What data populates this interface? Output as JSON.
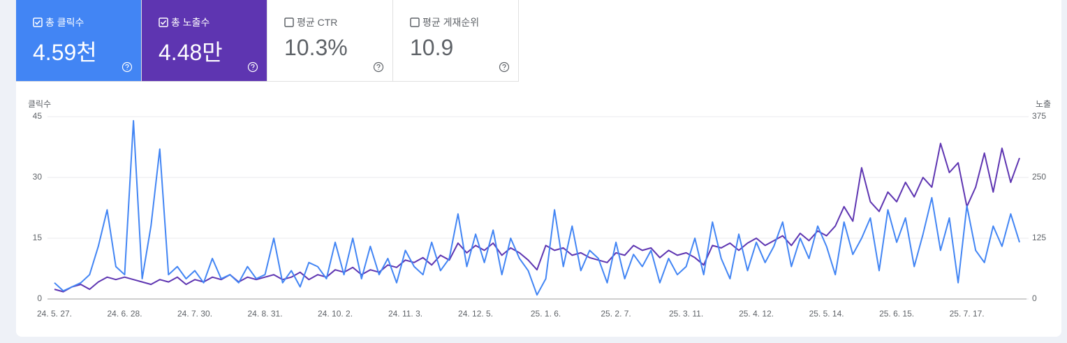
{
  "cards": [
    {
      "label": "총 클릭수",
      "value": "4.59천",
      "checked": true,
      "color": "#4285f4"
    },
    {
      "label": "총 노출수",
      "value": "4.48만",
      "checked": true,
      "color": "#5e35b1"
    },
    {
      "label": "평균 CTR",
      "value": "10.3%",
      "checked": false,
      "color": "#ffffff"
    },
    {
      "label": "평균 게재순위",
      "value": "10.9",
      "checked": false,
      "color": "#ffffff"
    }
  ],
  "chart_data": {
    "type": "line",
    "y_label": "클릭수",
    "y2_label": "노출",
    "categories": [
      "24. 5. 27.",
      null,
      null,
      null,
      null,
      null,
      null,
      null,
      "24. 6. 28.",
      null,
      null,
      null,
      null,
      null,
      null,
      null,
      "24. 7. 30.",
      null,
      null,
      null,
      null,
      null,
      null,
      null,
      "24. 8. 31.",
      null,
      null,
      null,
      null,
      null,
      null,
      null,
      "24. 10. 2.",
      null,
      null,
      null,
      null,
      null,
      null,
      null,
      "24. 11. 3.",
      null,
      null,
      null,
      null,
      null,
      null,
      null,
      "24. 12. 5.",
      null,
      null,
      null,
      null,
      null,
      null,
      null,
      "25. 1. 6.",
      null,
      null,
      null,
      null,
      null,
      null,
      null,
      "25. 2. 7.",
      null,
      null,
      null,
      null,
      null,
      null,
      null,
      "25. 3. 11.",
      null,
      null,
      null,
      null,
      null,
      null,
      null,
      "25. 4. 12.",
      null,
      null,
      null,
      null,
      null,
      null,
      null,
      "25. 5. 14.",
      null,
      null,
      null,
      null,
      null,
      null,
      null,
      "25. 6. 15.",
      null,
      null,
      null,
      null,
      null,
      null,
      null,
      "25. 7. 17.",
      null,
      null,
      null,
      null,
      null,
      null
    ],
    "ylim": [
      0,
      45
    ],
    "yticks": [
      0,
      15,
      30,
      45
    ],
    "y2lim": [
      0,
      375
    ],
    "y2ticks": [
      0,
      125,
      250,
      375
    ],
    "grid": true,
    "series": [
      {
        "name": "노출수",
        "color": "#5e35b1",
        "axis": "y2",
        "values": [
          20,
          15,
          25,
          30,
          20,
          35,
          45,
          40,
          45,
          40,
          35,
          30,
          40,
          35,
          45,
          30,
          40,
          35,
          45,
          40,
          50,
          35,
          45,
          40,
          45,
          50,
          40,
          45,
          55,
          40,
          50,
          45,
          60,
          55,
          65,
          50,
          60,
          55,
          70,
          65,
          80,
          75,
          85,
          70,
          90,
          80,
          115,
          95,
          110,
          100,
          115,
          90,
          105,
          95,
          80,
          60,
          110,
          100,
          105,
          90,
          95,
          85,
          80,
          75,
          95,
          90,
          110,
          100,
          105,
          85,
          100,
          90,
          95,
          85,
          70,
          110,
          105,
          115,
          100,
          115,
          125,
          110,
          120,
          130,
          110,
          135,
          120,
          140,
          130,
          150,
          190,
          160,
          270,
          200,
          180,
          220,
          200,
          240,
          210,
          250,
          230,
          320,
          260,
          280,
          190,
          230,
          300,
          220,
          310,
          240,
          290
        ]
      },
      {
        "name": "클릭수",
        "color": "#4285f4",
        "values": [
          4,
          2,
          3,
          4,
          6,
          13,
          22,
          8,
          6,
          44,
          5,
          18,
          37,
          6,
          8,
          5,
          7,
          4,
          10,
          5,
          6,
          4,
          8,
          5,
          6,
          15,
          4,
          7,
          3,
          9,
          8,
          5,
          14,
          6,
          15,
          5,
          13,
          6,
          10,
          4,
          12,
          8,
          6,
          14,
          7,
          10,
          21,
          8,
          16,
          9,
          17,
          6,
          15,
          10,
          7,
          1,
          5,
          22,
          8,
          18,
          7,
          12,
          10,
          4,
          14,
          5,
          11,
          8,
          12,
          4,
          10,
          6,
          8,
          15,
          6,
          19,
          10,
          5,
          16,
          7,
          14,
          9,
          13,
          19,
          8,
          15,
          10,
          18,
          13,
          6,
          19,
          11,
          15,
          20,
          7,
          22,
          14,
          20,
          8,
          16,
          25,
          12,
          20,
          4,
          23,
          12,
          9,
          18,
          13,
          21,
          14
        ]
      }
    ]
  }
}
